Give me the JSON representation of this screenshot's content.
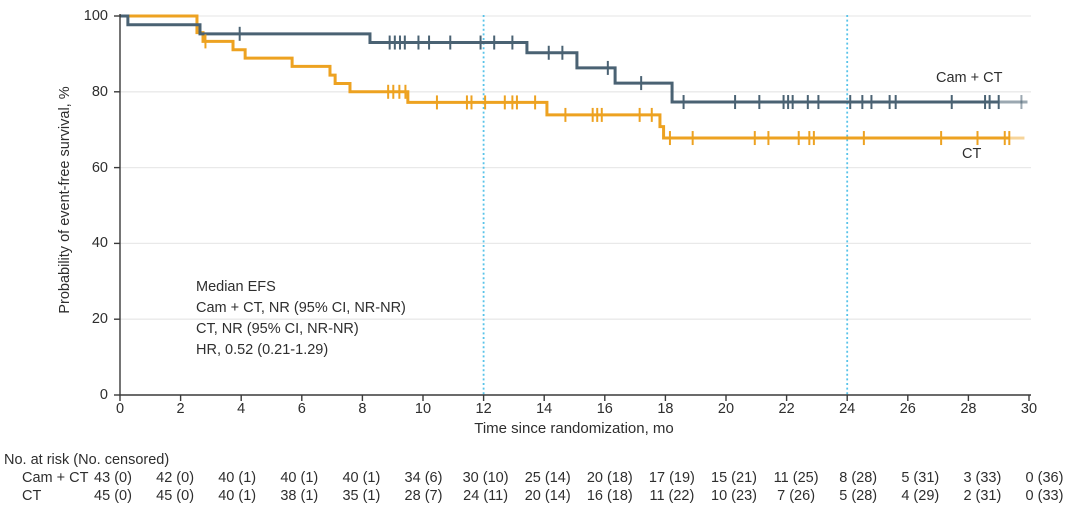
{
  "colors": {
    "cam_ct_curve": "#4A6273",
    "ct_curve": "#EDA221",
    "reference_line": "#58C3E9",
    "grid": "#E9E9E9",
    "axis": "#3A3A3A",
    "text": "#2E2E2E"
  },
  "chart_data": {
    "type": "line",
    "subtype": "kaplan-meier-step",
    "title": "",
    "xlabel": "Time since randomization, mo",
    "ylabel": "Probability of event-free survival, %",
    "xlim": [
      0,
      30
    ],
    "ylim": [
      0,
      100
    ],
    "x_ticks": [
      0,
      2,
      4,
      6,
      8,
      10,
      12,
      14,
      16,
      18,
      20,
      22,
      24,
      26,
      28,
      30
    ],
    "y_ticks": [
      0,
      20,
      40,
      60,
      80,
      100
    ],
    "grid": true,
    "reference_lines_x": [
      12,
      24
    ],
    "annotation_lines": [
      "Median EFS",
      "Cam + CT, NR (95% CI, NR-NR)",
      "CT, NR (95% CI, NR-NR)",
      "HR, 0.52 (0.21-1.29)"
    ],
    "series": [
      {
        "name": "Cam + CT",
        "color": "#4A6273",
        "start_y": 100,
        "steps": [
          [
            0.26,
            97.7
          ],
          [
            2.64,
            95.3
          ],
          [
            8.25,
            93.0
          ],
          [
            13.43,
            90.3
          ],
          [
            15.08,
            86.3
          ],
          [
            16.34,
            82.3
          ],
          [
            18.22,
            77.3
          ]
        ],
        "solid_end_x": 29.0,
        "tail_end_x": 29.95,
        "tail_opacity": 0.55,
        "censors": [
          [
            3.95,
            95.3
          ],
          [
            8.9,
            93.0
          ],
          [
            9.07,
            93.0
          ],
          [
            9.24,
            93.0
          ],
          [
            9.4,
            93.0
          ],
          [
            9.85,
            93.0
          ],
          [
            10.2,
            93.0
          ],
          [
            10.9,
            93.0
          ],
          [
            11.9,
            93.0
          ],
          [
            12.35,
            93.0
          ],
          [
            12.95,
            93.0
          ],
          [
            14.15,
            90.3
          ],
          [
            14.6,
            90.3
          ],
          [
            16.1,
            86.3
          ],
          [
            17.2,
            82.3
          ],
          [
            18.6,
            77.3
          ],
          [
            20.3,
            77.3
          ],
          [
            21.1,
            77.3
          ],
          [
            21.9,
            77.3
          ],
          [
            22.05,
            77.3
          ],
          [
            22.2,
            77.3
          ],
          [
            22.7,
            77.3
          ],
          [
            23.05,
            77.3
          ],
          [
            24.1,
            77.3
          ],
          [
            24.5,
            77.3
          ],
          [
            24.8,
            77.3
          ],
          [
            25.4,
            77.3
          ],
          [
            25.6,
            77.3
          ],
          [
            27.45,
            77.3
          ],
          [
            28.55,
            77.3
          ],
          [
            28.7,
            77.3
          ],
          [
            29.0,
            77.3
          ],
          [
            29.75,
            77.3,
            0.55
          ]
        ]
      },
      {
        "name": "CT",
        "color": "#EDA221",
        "start_y": 100,
        "steps": [
          [
            2.54,
            95.6
          ],
          [
            2.74,
            93.3
          ],
          [
            3.73,
            91.1
          ],
          [
            4.13,
            88.9
          ],
          [
            5.68,
            86.7
          ],
          [
            6.93,
            84.4
          ],
          [
            7.1,
            82.2
          ],
          [
            7.59,
            80.0
          ],
          [
            9.5,
            77.2
          ],
          [
            14.09,
            73.9
          ],
          [
            17.82,
            70.8
          ],
          [
            17.94,
            67.8
          ]
        ],
        "solid_end_x": 29.35,
        "tail_end_x": 29.85,
        "tail_opacity": 0.45,
        "censors": [
          [
            2.82,
            93.3
          ],
          [
            8.85,
            80.0
          ],
          [
            9.02,
            80.0
          ],
          [
            9.22,
            80.0
          ],
          [
            9.42,
            80.0
          ],
          [
            10.46,
            77.2
          ],
          [
            11.45,
            77.2
          ],
          [
            11.6,
            77.2
          ],
          [
            12.05,
            77.2
          ],
          [
            12.7,
            77.2
          ],
          [
            12.95,
            77.2
          ],
          [
            13.1,
            77.2
          ],
          [
            13.7,
            77.2
          ],
          [
            14.7,
            73.9
          ],
          [
            15.6,
            73.9
          ],
          [
            15.75,
            73.9
          ],
          [
            15.9,
            73.9
          ],
          [
            17.15,
            73.9
          ],
          [
            17.55,
            73.9
          ],
          [
            18.15,
            67.8
          ],
          [
            18.9,
            67.8
          ],
          [
            20.95,
            67.8
          ],
          [
            21.4,
            67.8
          ],
          [
            22.4,
            67.8
          ],
          [
            22.75,
            67.8
          ],
          [
            22.9,
            67.8
          ],
          [
            24.55,
            67.8
          ],
          [
            27.1,
            67.8
          ],
          [
            28.3,
            67.8
          ],
          [
            29.2,
            67.8
          ],
          [
            29.35,
            67.8
          ]
        ]
      }
    ],
    "risk_table": {
      "header": "No. at risk (No. censored)",
      "time_points": [
        0,
        2,
        4,
        6,
        8,
        10,
        12,
        14,
        16,
        18,
        20,
        22,
        24,
        26,
        28,
        30
      ],
      "rows": [
        {
          "label": "Cam + CT",
          "values": [
            "43 (0)",
            "42 (0)",
            "40 (1)",
            "40 (1)",
            "40 (1)",
            "34 (6)",
            "30 (10)",
            "25 (14)",
            "20 (18)",
            "17 (19)",
            "15 (21)",
            "11 (25)",
            "8 (28)",
            "5 (31)",
            "3 (33)",
            "0 (36)"
          ]
        },
        {
          "label": "CT",
          "values": [
            "45 (0)",
            "45 (0)",
            "40 (1)",
            "38 (1)",
            "35 (1)",
            "28 (7)",
            "24 (11)",
            "20 (14)",
            "16 (18)",
            "11 (22)",
            "10 (23)",
            "7 (26)",
            "5 (28)",
            "4 (29)",
            "2 (31)",
            "0 (33)"
          ]
        }
      ]
    }
  }
}
